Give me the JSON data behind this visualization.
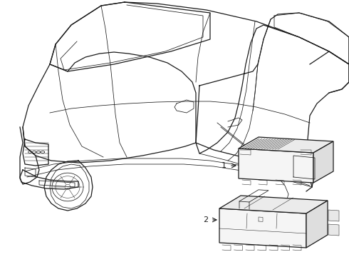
{
  "bg_color": "#ffffff",
  "line_color": "#1a1a1a",
  "label1": "1",
  "label2": "2",
  "figsize": [
    4.9,
    3.6
  ],
  "dpi": 100,
  "lw_main": 0.9,
  "lw_detail": 0.55,
  "lw_thin": 0.35
}
